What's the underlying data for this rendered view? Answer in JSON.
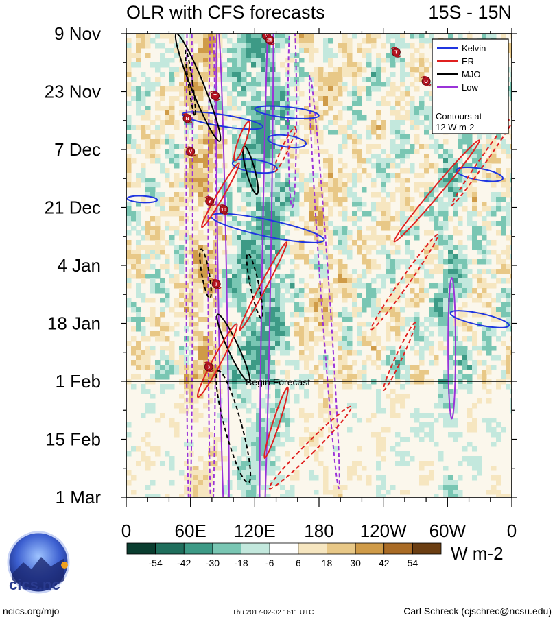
{
  "header": {
    "title": "OLR with CFS forecasts",
    "region": "15S - 15N"
  },
  "chart_data": {
    "type": "heatmap",
    "title": "OLR with CFS forecasts",
    "subtitle": "15S - 15N",
    "x_axis": {
      "ticks": [
        "0",
        "60E",
        "120E",
        "180",
        "120W",
        "60W",
        "0"
      ],
      "tick_longitudes": [
        0,
        60,
        120,
        180,
        240,
        300,
        360
      ],
      "range": [
        0,
        360
      ]
    },
    "y_axis": {
      "ticks": [
        "9 Nov",
        "23 Nov",
        "7 Dec",
        "21 Dec",
        "4 Jan",
        "18 Jan",
        "1 Feb",
        "15 Feb",
        "1 Mar"
      ],
      "tick_days": [
        0,
        14,
        28,
        42,
        56,
        70,
        84,
        98,
        112
      ],
      "range_days": [
        0,
        112
      ],
      "inverted": true
    },
    "forecast_start": {
      "label": "Begin Forecast",
      "day": 84
    },
    "colorbar": {
      "labels": [
        "-54",
        "-42",
        "-30",
        "-18",
        "-6",
        "6",
        "18",
        "30",
        "42",
        "54"
      ],
      "colors": [
        "#0a3d2f",
        "#1f6e5c",
        "#3d9a86",
        "#79c6b3",
        "#c3e8dd",
        "#ffffff",
        "#f6e6c0",
        "#e8c887",
        "#cf9b48",
        "#a96b25",
        "#6b3e12"
      ],
      "unit": "W m-2"
    },
    "legend": {
      "entries": [
        {
          "name": "Kelvin",
          "color": "#1f35e0"
        },
        {
          "name": "ER",
          "color": "#e0201f"
        },
        {
          "name": "MJO",
          "color": "#000000"
        },
        {
          "name": "Low",
          "color": "#9a33d8"
        }
      ],
      "note_line1": "Contours at",
      "note_line2": "12 W m-2",
      "position": "top-right"
    },
    "storms": [
      {
        "label": "M",
        "lon": 131,
        "day": 0.5
      },
      {
        "label": "26",
        "lon": 134,
        "day": 1.5
      },
      {
        "label": "T",
        "lon": 252,
        "day": 4.5
      },
      {
        "label": "O",
        "lon": 280,
        "day": 11.5
      },
      {
        "label": "T",
        "lon": 83,
        "day": 15
      },
      {
        "label": "N",
        "lon": 57,
        "day": 20.5
      },
      {
        "label": "V",
        "lon": 60,
        "day": 28.5
      },
      {
        "label": "Y",
        "lon": 78,
        "day": 40.5
      },
      {
        "label": "10",
        "lon": 91,
        "day": 42.5
      },
      {
        "label": "1",
        "lon": 84,
        "day": 60.5
      },
      {
        "label": "3",
        "lon": 77,
        "day": 80.5
      }
    ]
  },
  "logo": {
    "text": "cics.nc"
  },
  "footer": {
    "left": "ncics.org/mjo",
    "center": "Thu 2017-02-02 1611 UTC",
    "right": "Carl Schreck (cjschrec@ncsu.edu)"
  }
}
